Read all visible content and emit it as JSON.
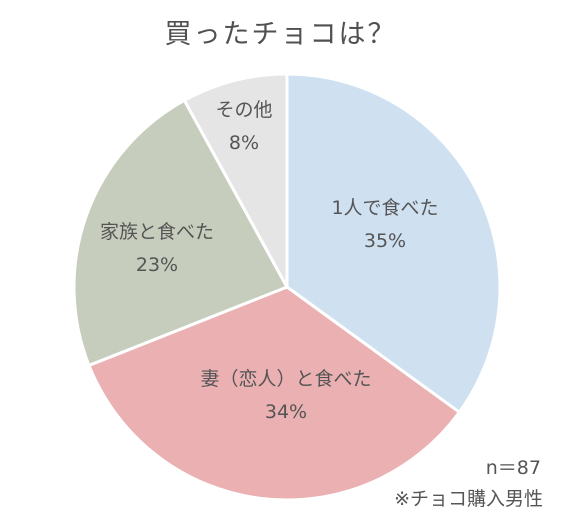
{
  "title": "買ったチョコは？",
  "sample_size": "n＝87",
  "footnote": "※チョコ購入男性",
  "chart_data": {
    "type": "pie",
    "title": "買ったチョコは？",
    "slices": [
      {
        "label": "1人で食べた",
        "value": 35,
        "display": "35%",
        "color": "#cfe0f1"
      },
      {
        "label": "妻（恋人）と食べた",
        "value": 34,
        "display": "34%",
        "color": "#eab0b2"
      },
      {
        "label": "家族と食べた",
        "value": 23,
        "display": "23%",
        "color": "#c6cdbd"
      },
      {
        "label": "その他",
        "value": 8,
        "display": "8%",
        "color": "#e5e5e5"
      }
    ],
    "start": "12 o'clock",
    "direction": "clockwise"
  }
}
